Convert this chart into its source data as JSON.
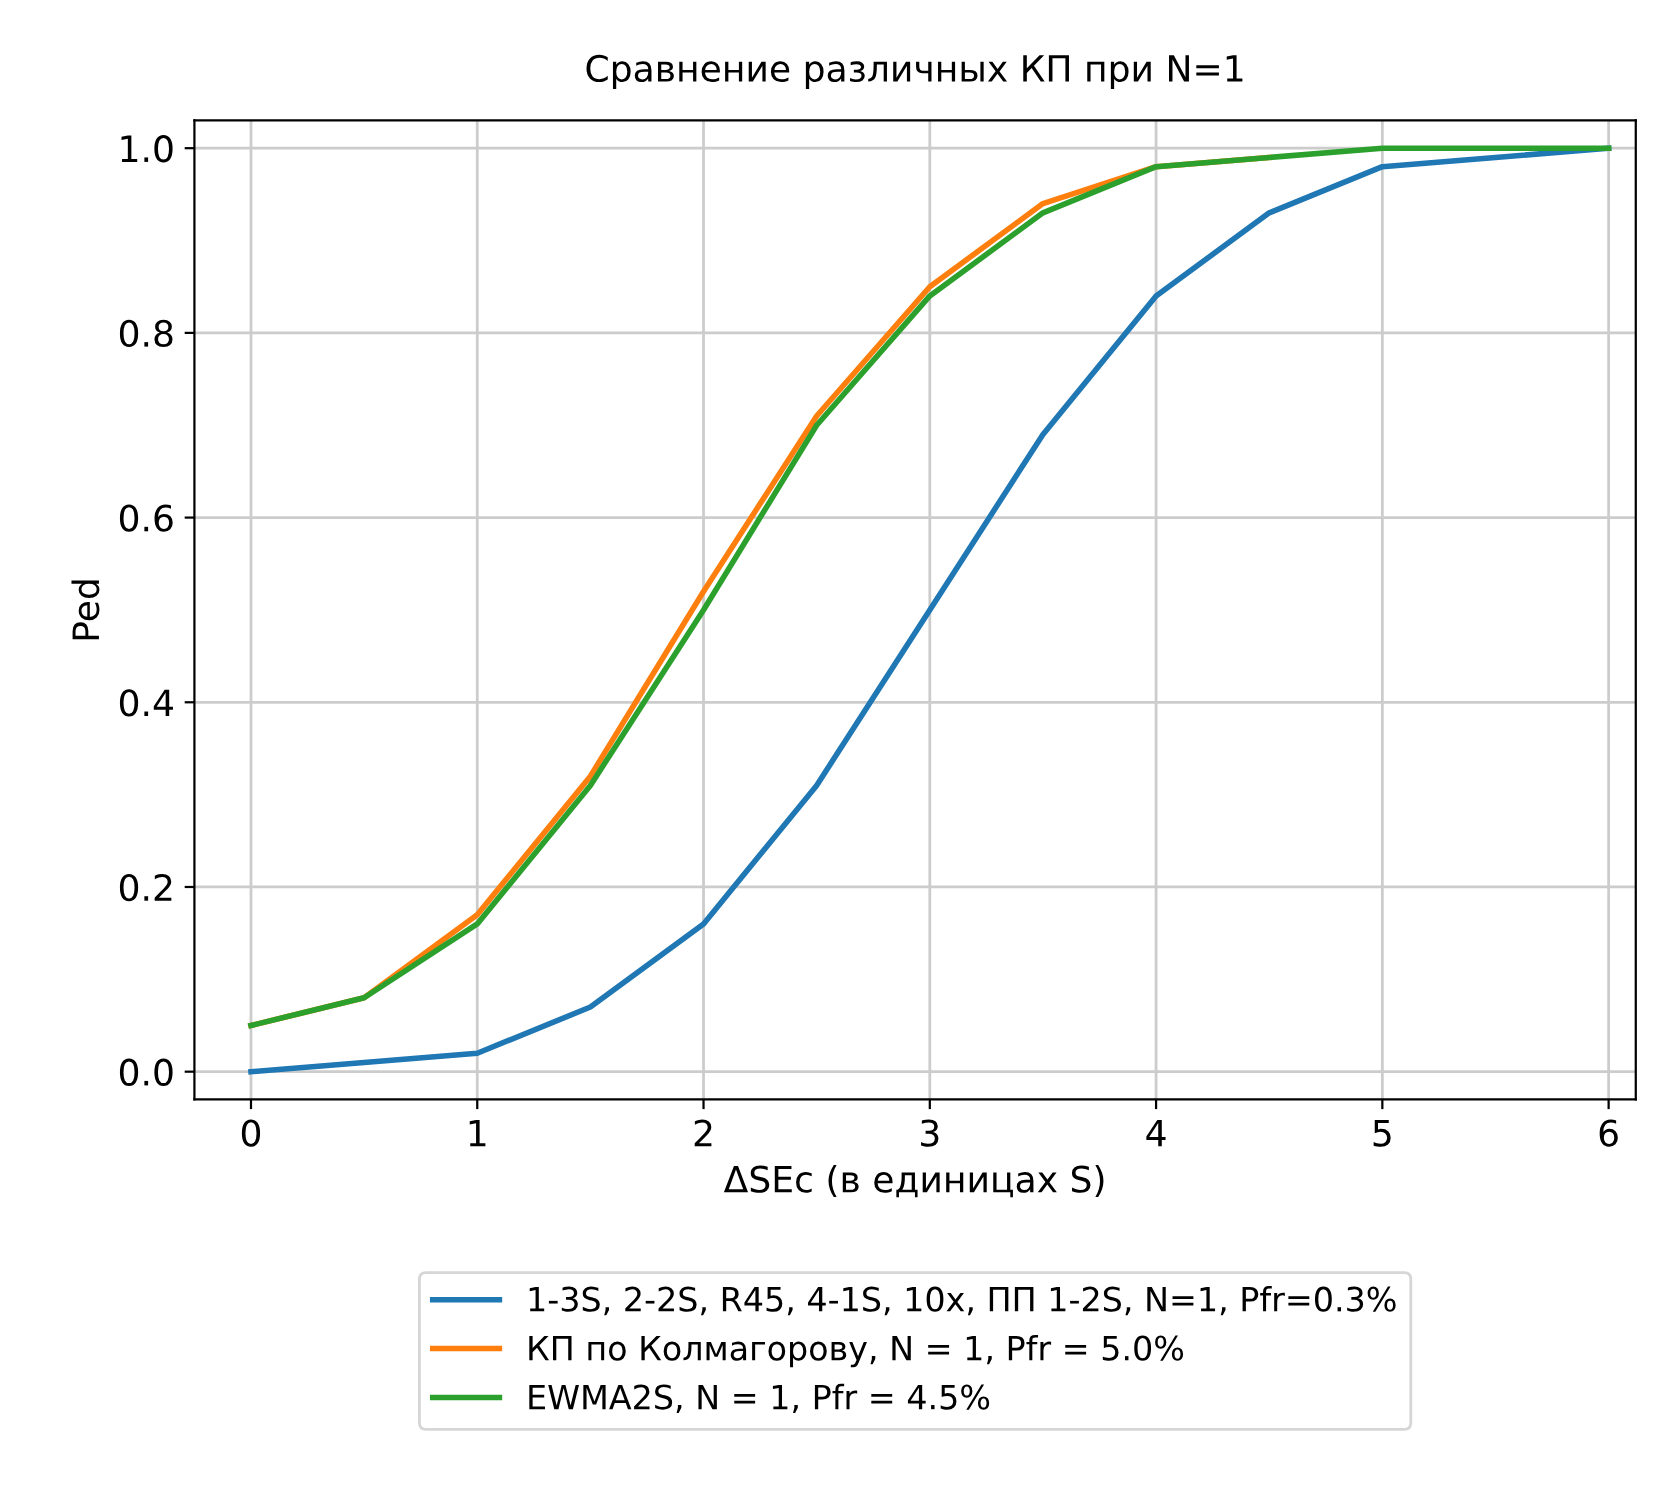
{
  "chart_data": {
    "type": "line",
    "title": "Сравнение различных КП при N=1",
    "xlabel": "ΔSEc (в единицах S)",
    "ylabel": "Ped",
    "x": [
      0,
      0.5,
      1,
      1.5,
      2,
      2.5,
      3,
      3.5,
      4,
      4.5,
      5,
      5.5,
      6
    ],
    "series": [
      {
        "name": "1-3S, 2-2S, R45, 4-1S, 10x, ПП 1-2S, N=1, Pfr=0.3%",
        "color": "#1f77b4",
        "values": [
          0.0,
          0.01,
          0.02,
          0.07,
          0.16,
          0.31,
          0.5,
          0.69,
          0.84,
          0.93,
          0.98,
          0.99,
          1.0
        ]
      },
      {
        "name": "КП по Колмагорову, N = 1, Pfr = 5.0%",
        "color": "#ff7f0e",
        "values": [
          0.05,
          0.08,
          0.17,
          0.32,
          0.52,
          0.71,
          0.85,
          0.94,
          0.98,
          0.99,
          null,
          null,
          null
        ]
      },
      {
        "name": "EWMA2S, N = 1, Pfr = 4.5%",
        "color": "#2ca02c",
        "values": [
          0.05,
          0.08,
          0.16,
          0.31,
          0.5,
          0.7,
          0.84,
          0.93,
          0.98,
          0.99,
          1.0,
          1.0,
          1.0
        ]
      }
    ],
    "xlim": [
      -0.25,
      6.12
    ],
    "ylim": [
      -0.03,
      1.03
    ],
    "xticks": [
      0,
      1,
      2,
      3,
      4,
      5,
      6
    ],
    "yticks": [
      {
        "value": 0,
        "label": "0.0"
      },
      {
        "value": 0.2,
        "label": "0.2"
      },
      {
        "value": 0.4,
        "label": "0.4"
      },
      {
        "value": 0.6,
        "label": "0.6"
      },
      {
        "value": 0.8,
        "label": "0.8"
      },
      {
        "value": 1.0,
        "label": "1.0"
      }
    ],
    "grid": true,
    "legend": "bottom",
    "marker": "none",
    "line_style": "solid"
  }
}
